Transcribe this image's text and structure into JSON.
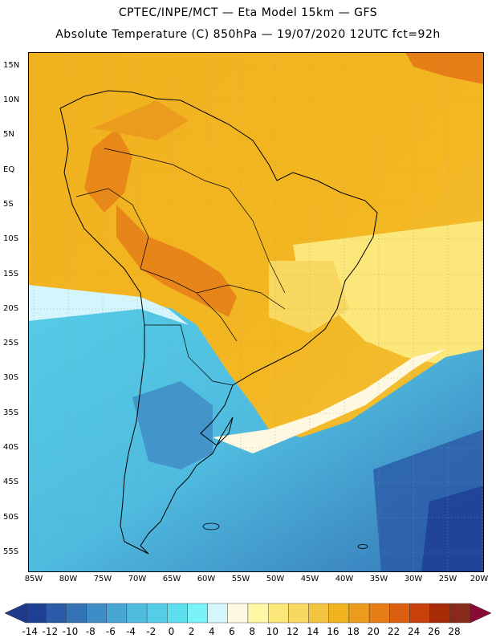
{
  "header": {
    "line1": "CPTEC/INPE/MCT —  Eta Model 15km — GFS",
    "line2": "Absolute Temperature (C) 850hPa — 19/07/2020 12UTC fct=92h"
  },
  "axes": {
    "lat_labels": [
      "15N",
      "10N",
      "5N",
      "EQ",
      "5S",
      "10S",
      "15S",
      "20S",
      "25S",
      "30S",
      "35S",
      "40S",
      "45S",
      "50S",
      "55S"
    ],
    "lon_labels": [
      "85W",
      "80W",
      "75W",
      "70W",
      "65W",
      "60W",
      "55W",
      "50W",
      "45W",
      "40W",
      "35W",
      "30W",
      "25W",
      "20W"
    ]
  },
  "colorbar": {
    "labels": [
      "-14",
      "-12",
      "-10",
      "-8",
      "-6",
      "-4",
      "-2",
      "0",
      "2",
      "4",
      "6",
      "8",
      "10",
      "12",
      "14",
      "16",
      "18",
      "20",
      "22",
      "24",
      "26",
      "28"
    ],
    "colors": [
      "#1f3f94",
      "#2a5aa8",
      "#3474b6",
      "#3f8dc6",
      "#47a6d4",
      "#4fbbdf",
      "#56cde7",
      "#5fdeee",
      "#7af3f6",
      "#d4f5fb",
      "#fff8e0",
      "#fff7a5",
      "#fbe77a",
      "#f8d860",
      "#f3c440",
      "#f0b21e",
      "#eb9c1c",
      "#e67d17",
      "#dc5e10",
      "#c8400b",
      "#a82c08",
      "#872a1b"
    ],
    "left_arrow_color": "#203a8c",
    "right_arrow_color": "#8a0a36"
  },
  "colors": {
    "land_outline": "#000000",
    "grid": "#999999"
  }
}
